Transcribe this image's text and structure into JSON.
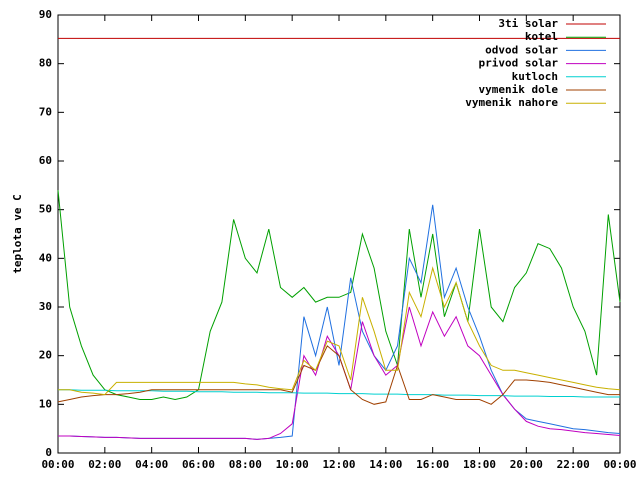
{
  "chart_data": {
    "type": "line",
    "y_label": "teplota ve C",
    "x": [
      0,
      0.5,
      1,
      1.5,
      2,
      2.5,
      3,
      3.5,
      4,
      4.5,
      5,
      5.5,
      6,
      6.5,
      7,
      7.5,
      8,
      8.5,
      9,
      9.5,
      10,
      10.5,
      11,
      11.5,
      12,
      12.5,
      13,
      13.5,
      14,
      14.5,
      15,
      15.5,
      16,
      16.5,
      17,
      17.5,
      18,
      18.5,
      19,
      19.5,
      20,
      20.5,
      21,
      21.5,
      22,
      22.5,
      23,
      23.5,
      24
    ],
    "xlim": [
      0,
      24
    ],
    "xticks": [
      {
        "value": 0,
        "label": "00:00"
      },
      {
        "value": 2,
        "label": "02:00"
      },
      {
        "value": 4,
        "label": "04:00"
      },
      {
        "value": 6,
        "label": "06:00"
      },
      {
        "value": 8,
        "label": "08:00"
      },
      {
        "value": 10,
        "label": "10:00"
      },
      {
        "value": 12,
        "label": "12:00"
      },
      {
        "value": 14,
        "label": "14:00"
      },
      {
        "value": 16,
        "label": "16:00"
      },
      {
        "value": 18,
        "label": "18:00"
      },
      {
        "value": 20,
        "label": "20:00"
      },
      {
        "value": 22,
        "label": "22:00"
      },
      {
        "value": 24,
        "label": "00:00"
      }
    ],
    "ylim": [
      0,
      90
    ],
    "yticks": [
      0,
      10,
      20,
      30,
      40,
      50,
      60,
      70,
      80,
      90
    ],
    "legend": "top right",
    "series": [
      {
        "name": "3ti solar",
        "color": "#c00000",
        "values": [
          85.2,
          85.2,
          85.2,
          85.2,
          85.2,
          85.2,
          85.2,
          85.2,
          85.2,
          85.2,
          85.2,
          85.2,
          85.2,
          85.2,
          85.2,
          85.2,
          85.2,
          85.2,
          85.2,
          85.2,
          85.2,
          85.2,
          85.2,
          85.2,
          85.2,
          85.2,
          85.2,
          85.2,
          85.2,
          85.2,
          85.2,
          85.2,
          85.2,
          85.2,
          85.2,
          85.2,
          85.2,
          85.2,
          85.2,
          85.2,
          85.2,
          85.2,
          85.2,
          85.2,
          85.2,
          85.2,
          85.2,
          85.2,
          85.2
        ]
      },
      {
        "name": "kotel",
        "color": "#00a000",
        "values": [
          54,
          30,
          22,
          16,
          13,
          12,
          11.5,
          11,
          11,
          11.5,
          11,
          11.5,
          13,
          25,
          31,
          48,
          40,
          37,
          46,
          34,
          32,
          34,
          31,
          32,
          32,
          33,
          45,
          38,
          25,
          18,
          46,
          32,
          45,
          28,
          35,
          27,
          46,
          30,
          27,
          34,
          37,
          43,
          42,
          38,
          30,
          25,
          16,
          49,
          31
        ]
      },
      {
        "name": "odvod solar",
        "color": "#2070e0",
        "values": [
          3.5,
          3.5,
          3.4,
          3.3,
          3.2,
          3.2,
          3.1,
          3,
          3,
          3,
          3,
          3,
          3,
          3,
          3,
          3,
          3,
          2.8,
          3,
          3.2,
          3.5,
          28,
          20,
          30,
          18,
          36,
          25,
          20,
          17,
          22,
          40,
          35,
          51,
          32,
          38,
          30,
          24,
          17,
          12,
          9,
          7,
          6.5,
          6,
          5.5,
          5,
          4.8,
          4.5,
          4.2,
          4
        ]
      },
      {
        "name": "privod solar",
        "color": "#c000c0",
        "values": [
          3.5,
          3.5,
          3.4,
          3.3,
          3.2,
          3.2,
          3.1,
          3,
          3,
          3,
          3,
          3,
          3,
          3,
          3,
          3,
          3,
          2.8,
          3,
          4,
          6,
          20,
          16,
          24,
          20,
          13,
          27,
          20,
          16,
          18,
          30,
          22,
          29,
          24,
          28,
          22,
          20,
          16,
          12,
          9,
          6.5,
          5.5,
          5,
          4.8,
          4.5,
          4.2,
          4,
          3.8,
          3.6
        ]
      },
      {
        "name": "kutloch",
        "color": "#00d0d0",
        "values": [
          13,
          13,
          12.9,
          12.9,
          12.9,
          12.8,
          12.8,
          12.8,
          12.8,
          12.7,
          12.7,
          12.7,
          12.6,
          12.6,
          12.6,
          12.5,
          12.5,
          12.5,
          12.4,
          12.4,
          12.4,
          12.3,
          12.3,
          12.3,
          12.2,
          12.2,
          12.2,
          12.1,
          12.1,
          12.1,
          12,
          12,
          12,
          11.9,
          11.9,
          11.9,
          11.8,
          11.8,
          11.8,
          11.7,
          11.7,
          11.7,
          11.6,
          11.6,
          11.6,
          11.5,
          11.5,
          11.5,
          11.5
        ]
      },
      {
        "name": "vymenik dole",
        "color": "#a04000",
        "values": [
          10.5,
          11,
          11.5,
          11.8,
          12,
          12,
          12.2,
          12.5,
          13,
          13,
          13,
          13,
          13,
          13,
          13,
          13,
          13,
          13,
          13,
          13,
          12.5,
          18,
          17,
          22,
          20,
          13,
          11,
          10,
          10.5,
          18,
          11,
          11,
          12,
          11.5,
          11,
          11,
          11,
          10,
          12,
          15,
          15,
          14.8,
          14.5,
          14,
          13.5,
          13,
          12.5,
          12,
          12
        ]
      },
      {
        "name": "vymenik nahore",
        "color": "#c8b000",
        "values": [
          13,
          13,
          12.5,
          12.3,
          12,
          14.5,
          14.5,
          14.5,
          14.5,
          14.5,
          14.5,
          14.5,
          14.5,
          14.5,
          14.5,
          14.5,
          14.2,
          14,
          13.5,
          13.2,
          13,
          19,
          17,
          23,
          22,
          15,
          32,
          25,
          17,
          17,
          33,
          28,
          38,
          30,
          35,
          27,
          22,
          18,
          17,
          17,
          16.5,
          16,
          15.5,
          15,
          14.5,
          14,
          13.5,
          13.2,
          13
        ]
      }
    ]
  }
}
